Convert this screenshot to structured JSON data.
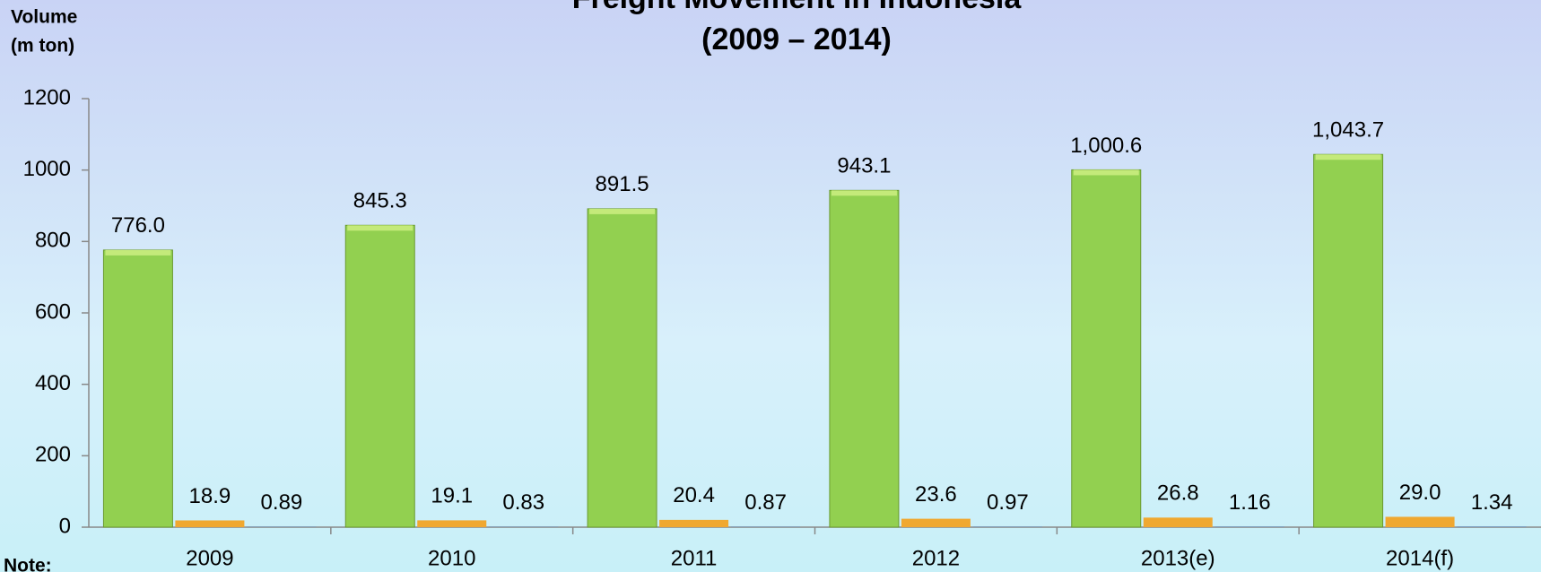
{
  "chart_data": {
    "type": "bar",
    "title": "Freight Movement in Indonesia",
    "subtitle": "(2009 – 2014)",
    "y_label_lines": [
      "Volume",
      "(m ton)"
    ],
    "note": "Note:",
    "categories": [
      "2009",
      "2010",
      "2011",
      "2012",
      "2013(e)",
      "2014(f)"
    ],
    "series": [
      {
        "color": "#92d050",
        "values": [
          776.0,
          845.3,
          891.5,
          943.1,
          1000.6,
          1043.7
        ],
        "value_labels": [
          "776.0",
          "845.3",
          "891.5",
          "943.1",
          "1,000.6",
          "1,043.7"
        ]
      },
      {
        "color": "#f0a830",
        "values": [
          18.9,
          19.1,
          20.4,
          23.6,
          26.8,
          29.0
        ],
        "value_labels": [
          "18.9",
          "19.1",
          "20.4",
          "23.6",
          "26.8",
          "29.0"
        ]
      },
      {
        "color": "#4f81bd",
        "values": [
          0.89,
          0.83,
          0.87,
          0.97,
          1.16,
          1.34
        ]
      }
    ],
    "ylim": [
      0,
      1200
    ],
    "yticks": [
      0,
      200,
      400,
      600,
      800,
      1000,
      1200
    ],
    "grid": false
  }
}
